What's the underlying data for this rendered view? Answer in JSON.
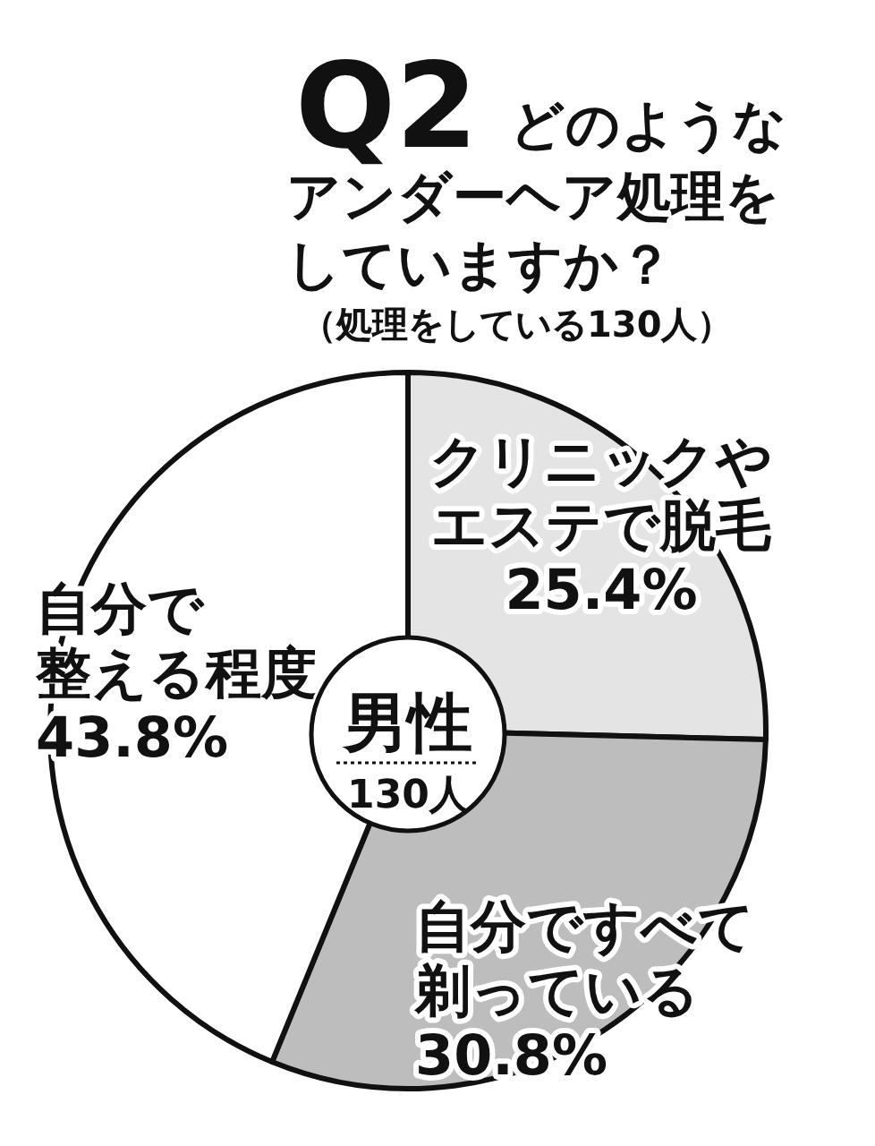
{
  "chart_data": {
    "type": "pie",
    "title": "Q2",
    "subtitle": "どのようなアンダーヘア処理をしていますか？",
    "categories": [
      "クリニックやエステで脱毛",
      "自分ですべて剃っている",
      "自分で整える程度"
    ],
    "values": [
      25.4,
      30.8,
      43.8
    ],
    "value_labels": [
      "25.4%",
      "30.8%",
      "43.8%"
    ],
    "colors": [
      "#e4e4e4",
      "#bdbdbd",
      "#ffffff"
    ],
    "annotations": [
      "（処理をしている130人）",
      "男性",
      "130人"
    ]
  }
}
